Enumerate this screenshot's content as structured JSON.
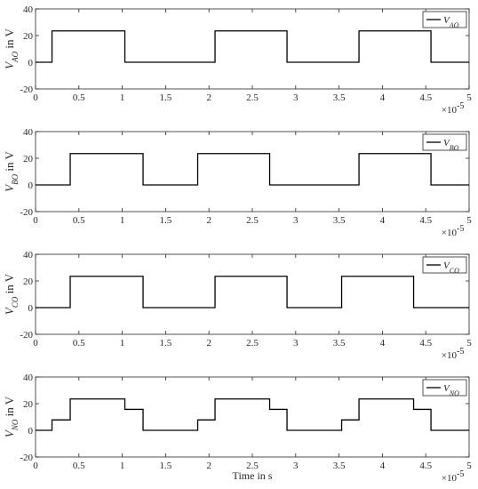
{
  "chart_data": [
    {
      "type": "line",
      "ylabel_var": "V",
      "ylabel_sub": "AO",
      "ylabel_rest": " in V",
      "legend": {
        "var": "V",
        "sub": "AO",
        "placement": "top-right"
      },
      "xlim": [
        0,
        5e-05
      ],
      "ylim": [
        -20,
        40
      ],
      "x_ticks": [
        "0",
        "0.5",
        "1",
        "1.5",
        "2",
        "2.5",
        "3",
        "3.5",
        "4",
        "4.5",
        "5"
      ],
      "y_ticks": [
        "-20",
        "0",
        "20",
        "40"
      ],
      "x_exponent": "×10",
      "x_exponent_power": "-5",
      "x": [
        0,
        1.9e-06,
        1.9e-06,
        1.03e-05,
        1.03e-05,
        2.07e-05,
        2.07e-05,
        2.9e-05,
        2.9e-05,
        3.73e-05,
        3.73e-05,
        4.56e-05,
        4.56e-05,
        5e-05
      ],
      "y": [
        0,
        0,
        23.5,
        23.5,
        0,
        0,
        23.5,
        23.5,
        0,
        0,
        23.5,
        23.5,
        0,
        0
      ]
    },
    {
      "type": "line",
      "ylabel_var": "V",
      "ylabel_sub": "BO",
      "ylabel_rest": " in V",
      "legend": {
        "var": "V",
        "sub": "BO",
        "placement": "top-right"
      },
      "xlim": [
        0,
        5e-05
      ],
      "ylim": [
        -20,
        40
      ],
      "x_ticks": [
        "0",
        "0.5",
        "1",
        "1.5",
        "2",
        "2.5",
        "3",
        "3.5",
        "4",
        "4.5",
        "5"
      ],
      "y_ticks": [
        "-20",
        "0",
        "20",
        "40"
      ],
      "x_exponent": "×10",
      "x_exponent_power": "-5",
      "x": [
        0,
        4e-06,
        4e-06,
        1.24e-05,
        1.24e-05,
        1.87e-05,
        1.87e-05,
        2.7e-05,
        2.7e-05,
        3.73e-05,
        3.73e-05,
        4.56e-05,
        4.56e-05,
        5e-05
      ],
      "y": [
        0,
        0,
        23.5,
        23.5,
        0,
        0,
        23.5,
        23.5,
        0,
        0,
        23.5,
        23.5,
        0,
        0
      ]
    },
    {
      "type": "line",
      "ylabel_var": "V",
      "ylabel_sub": "CO",
      "ylabel_rest": " in V",
      "legend": {
        "var": "V",
        "sub": "CO",
        "placement": "top-right"
      },
      "xlim": [
        0,
        5e-05
      ],
      "ylim": [
        -20,
        40
      ],
      "x_ticks": [
        "0",
        "0.5",
        "1",
        "1.5",
        "2",
        "2.5",
        "3",
        "3.5",
        "4",
        "4.5",
        "5"
      ],
      "y_ticks": [
        "-20",
        "0",
        "20",
        "40"
      ],
      "x_exponent": "×10",
      "x_exponent_power": "-5",
      "x": [
        0,
        4e-06,
        4e-06,
        1.24e-05,
        1.24e-05,
        2.07e-05,
        2.07e-05,
        2.9e-05,
        2.9e-05,
        3.53e-05,
        3.53e-05,
        4.36e-05,
        4.36e-05,
        5e-05
      ],
      "y": [
        0,
        0,
        23.5,
        23.5,
        0,
        0,
        23.5,
        23.5,
        0,
        0,
        23.5,
        23.5,
        0,
        0
      ]
    },
    {
      "type": "line",
      "ylabel_var": "V",
      "ylabel_sub": "NO",
      "ylabel_rest": " in V",
      "legend": {
        "var": "V",
        "sub": "NO",
        "placement": "top-right"
      },
      "xlabel": "Time in s",
      "xlim": [
        0,
        5e-05
      ],
      "ylim": [
        -20,
        40
      ],
      "x_ticks": [
        "0",
        "0.5",
        "1",
        "1.5",
        "2",
        "2.5",
        "3",
        "3.5",
        "4",
        "4.5",
        "5"
      ],
      "y_ticks": [
        "-20",
        "0",
        "20",
        "40"
      ],
      "x_exponent": "×10",
      "x_exponent_power": "-5",
      "x": [
        0,
        1.9e-06,
        1.9e-06,
        4e-06,
        4e-06,
        1.03e-05,
        1.03e-05,
        1.24e-05,
        1.24e-05,
        1.87e-05,
        1.87e-05,
        2.07e-05,
        2.07e-05,
        2.7e-05,
        2.7e-05,
        2.9e-05,
        2.9e-05,
        3.53e-05,
        3.53e-05,
        3.73e-05,
        3.73e-05,
        4.36e-05,
        4.36e-05,
        4.56e-05,
        4.56e-05,
        5e-05
      ],
      "y": [
        0,
        0,
        7.8,
        7.8,
        23.5,
        23.5,
        15.7,
        15.7,
        0,
        0,
        7.8,
        7.8,
        23.5,
        23.5,
        15.7,
        15.7,
        0,
        0,
        7.8,
        7.8,
        23.5,
        23.5,
        15.7,
        15.7,
        0,
        0
      ]
    }
  ]
}
